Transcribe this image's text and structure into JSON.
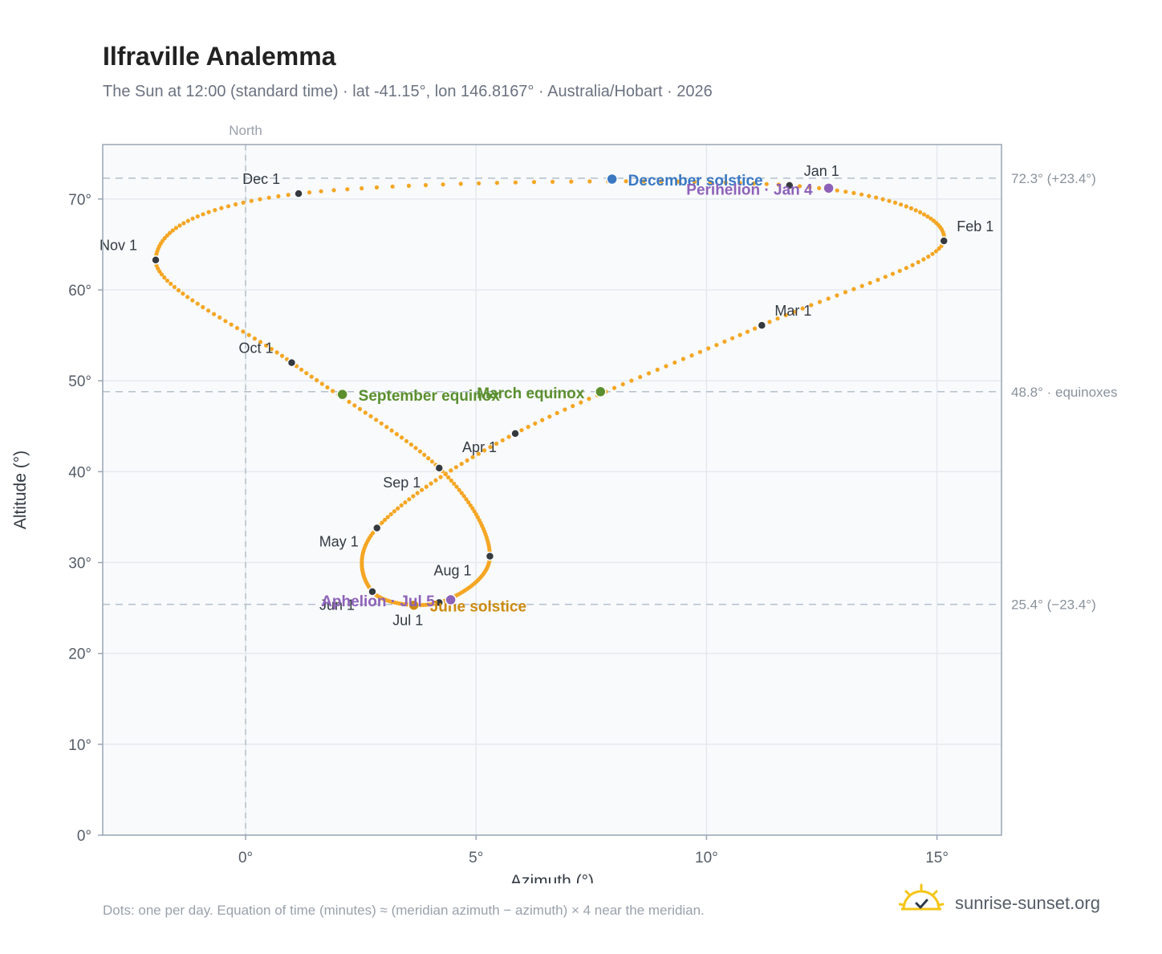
{
  "header": {
    "title": "Ilfraville Analemma",
    "subtitle": "The Sun at 12:00 (standard time) · lat -41.15°, lon 146.8167° · Australia/Hobart · 2026"
  },
  "footer": {
    "note": "Dots: one per day. Equation of time (minutes) ≈ (meridian azimuth − azimuth) × 4 near the meridian.",
    "brand": "sunrise-sunset.org"
  },
  "colors": {
    "path": "#f5a623",
    "month_marker": "#343a40",
    "equinox": "#5b8f2e",
    "december_solstice": "#3a78c2",
    "june_solstice": "#cc8a0e",
    "apsis": "#8e62b9",
    "reference_line": "#b4c0cc",
    "plot_background": "#f8fafc"
  },
  "chart_data": {
    "type": "scatter",
    "xlabel": "Azimuth (°)",
    "ylabel": "Altitude (°)",
    "xlim": [
      -3.1,
      16.4
    ],
    "ylim": [
      0,
      76
    ],
    "x_ticks": [
      0,
      5,
      10,
      15
    ],
    "x_tick_labels": [
      "0°",
      "5°",
      "10°",
      "15°"
    ],
    "y_ticks": [
      0,
      10,
      20,
      30,
      40,
      50,
      60,
      70
    ],
    "y_tick_labels": [
      "0°",
      "10°",
      "20°",
      "30°",
      "40°",
      "50°",
      "60°",
      "70°"
    ],
    "grid": true,
    "north_line": {
      "x": 0,
      "label": "North"
    },
    "reference_lines": [
      {
        "y": 72.3,
        "label": "72.3° (+23.4°)"
      },
      {
        "y": 48.8,
        "label": "48.8° · equinoxes"
      },
      {
        "y": 25.4,
        "label": "25.4° (−23.4°)"
      }
    ],
    "months": [
      {
        "label": "Jan 1",
        "x": 11.8,
        "y": 71.5
      },
      {
        "label": "Feb 1",
        "x": 15.15,
        "y": 65.4
      },
      {
        "label": "Mar 1",
        "x": 11.2,
        "y": 56.1
      },
      {
        "label": "Apr 1",
        "x": 5.85,
        "y": 44.2
      },
      {
        "label": "May 1",
        "x": 2.85,
        "y": 33.8
      },
      {
        "label": "Jun 1",
        "x": 2.75,
        "y": 26.8
      },
      {
        "label": "Jul 1",
        "x": 4.2,
        "y": 25.6
      },
      {
        "label": "Aug 1",
        "x": 5.3,
        "y": 30.7
      },
      {
        "label": "Sep 1",
        "x": 4.2,
        "y": 40.4
      },
      {
        "label": "Oct 1",
        "x": 1.0,
        "y": 52.0
      },
      {
        "label": "Nov 1",
        "x": -1.95,
        "y": 63.3
      },
      {
        "label": "Dec 1",
        "x": 1.15,
        "y": 70.6
      }
    ],
    "events": [
      {
        "label": "December solstice",
        "x": 7.95,
        "y": 72.2,
        "kind": "december_solstice"
      },
      {
        "label": "Perihelion · Jan 4",
        "x": 12.65,
        "y": 71.2,
        "kind": "apsis"
      },
      {
        "label": "March equinox",
        "x": 7.7,
        "y": 48.8,
        "kind": "equinox"
      },
      {
        "label": "September equinox",
        "x": 2.1,
        "y": 48.5,
        "kind": "equinox"
      },
      {
        "label": "June solstice",
        "x": 3.65,
        "y": 25.3,
        "kind": "june_solstice"
      },
      {
        "label": "Aphelion · Jul 5",
        "x": 4.45,
        "y": 25.9,
        "kind": "apsis"
      }
    ]
  }
}
